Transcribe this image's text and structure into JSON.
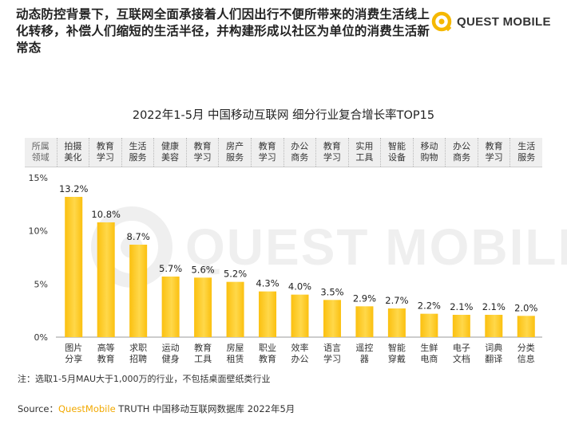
{
  "header": {
    "text": "动态防控背景下，互联网全面承接着人们因出行不便所带来的消费生活线上化转移，补偿人们缩短的生活半径，并构建形成以社区为单位的消费生活新常态"
  },
  "logo": {
    "text": "QUEST MOBILE",
    "accent_color": "#f5b800"
  },
  "watermark": {
    "text": "QUEST MOBILE"
  },
  "category_row": {
    "header": "所属\n领域",
    "items": [
      "拍摄\n美化",
      "教育\n学习",
      "生活\n服务",
      "健康\n美容",
      "教育\n学习",
      "房产\n服务",
      "教育\n学习",
      "办公\n商务",
      "教育\n学习",
      "实用\n工具",
      "智能\n设备",
      "移动\n购物",
      "办公\n商务",
      "教育\n学习",
      "生活\n服务"
    ]
  },
  "chart_data": {
    "type": "bar",
    "title": "2022年1-5月 中国移动互联网 细分行业复合增长率TOP15",
    "categories": [
      "图片\n分享",
      "高等\n教育",
      "求职\n招聘",
      "运动\n健身",
      "教育\n工具",
      "房屋\n租赁",
      "职业\n教育",
      "效率\n办公",
      "语言\n学习",
      "遥控\n器",
      "智能\n穿戴",
      "生鲜\n电商",
      "电子\n文档",
      "词典\n翻译",
      "分类\n信息"
    ],
    "values": [
      13.2,
      10.8,
      8.7,
      5.7,
      5.6,
      5.2,
      4.3,
      4.0,
      3.5,
      2.9,
      2.7,
      2.2,
      2.1,
      2.1,
      2.0
    ],
    "value_labels": [
      "13.2%",
      "10.8%",
      "8.7%",
      "5.7%",
      "5.6%",
      "5.2%",
      "4.3%",
      "4.0%",
      "3.5%",
      "2.9%",
      "2.7%",
      "2.2%",
      "2.1%",
      "2.1%",
      "2.0%"
    ],
    "y_ticks": [
      "0%",
      "5%",
      "10%",
      "15%"
    ],
    "y_tick_values": [
      0,
      5,
      10,
      15
    ],
    "ylim": [
      0,
      15
    ],
    "bar_color": "#fbc00f",
    "bar_color_light": "#ffd84a",
    "grid": false,
    "legend": "none"
  },
  "note": "注：选取1-5月MAU大于1,000万的行业，不包括桌面壁纸类行业",
  "source": {
    "prefix": "Source：",
    "brand": "QuestMobile",
    "rest": " TRUTH 中国移动互联网数据库 2022年5月"
  }
}
